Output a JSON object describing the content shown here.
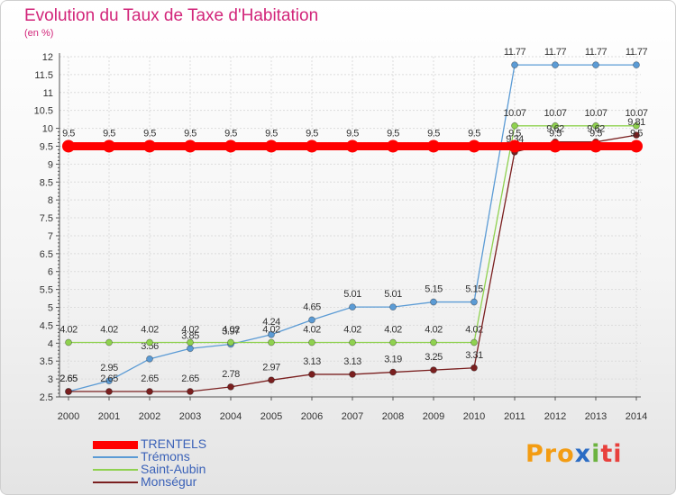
{
  "title": "Evolution du Taux de Taxe d'Habitation",
  "subtitle": "(en %)",
  "logo": [
    "Pro",
    "x",
    "i",
    "ti"
  ],
  "chart_data": {
    "type": "line",
    "x": [
      2000,
      2001,
      2002,
      2003,
      2004,
      2005,
      2006,
      2007,
      2008,
      2009,
      2010,
      2011,
      2012,
      2013,
      2014
    ],
    "ylim": [
      2.5,
      12
    ],
    "yticks": [
      "2.5",
      "3",
      "3.5",
      "4",
      "4.5",
      "5",
      "5.5",
      "6",
      "6.5",
      "7",
      "7.5",
      "8",
      "8.5",
      "9",
      "9.5",
      "10",
      "10.5",
      "11",
      "11.5",
      "12"
    ],
    "grid": true,
    "legend_position": "bottom-left",
    "series": [
      {
        "name": "TRENTELS",
        "color": "#ff0000",
        "values": [
          9.5,
          9.5,
          9.5,
          9.5,
          9.5,
          9.5,
          9.5,
          9.5,
          9.5,
          9.5,
          9.5,
          9.5,
          9.5,
          9.5,
          9.5
        ],
        "labels": [
          "9.5",
          "9.5",
          "9.5",
          "9.5",
          "9.5",
          "9.5",
          "9.5",
          "9.5",
          "9.5",
          "9.5",
          "9.5",
          "9.5",
          "9.5",
          "9.5",
          "9.5"
        ]
      },
      {
        "name": "Trémons",
        "color": "#5b9bd5",
        "values": [
          2.65,
          2.95,
          3.56,
          3.85,
          3.97,
          4.24,
          4.65,
          5.01,
          5.01,
          5.15,
          5.15,
          11.77,
          11.77,
          11.77,
          11.77
        ],
        "labels": [
          "2.65",
          "2.95",
          "3.56",
          "3.85",
          "3.97",
          "4.24",
          "4.65",
          "5.01",
          "5.01",
          "5.15",
          "5.15",
          "11.77",
          "11.77",
          "11.77",
          "11.77"
        ]
      },
      {
        "name": "Saint-Aubin",
        "color": "#8fd14f",
        "values": [
          4.02,
          4.02,
          4.02,
          4.02,
          4.02,
          4.02,
          4.02,
          4.02,
          4.02,
          4.02,
          4.02,
          10.07,
          10.07,
          10.07,
          10.07
        ],
        "labels": [
          "4.02",
          "4.02",
          "4.02",
          "4.02",
          "4.02",
          "4.02",
          "4.02",
          "4.02",
          "4.02",
          "4.02",
          "4.02",
          "10.07",
          "10.07",
          "10.07",
          "10.07"
        ]
      },
      {
        "name": "Monségur",
        "color": "#7a1f1f",
        "values": [
          2.65,
          2.65,
          2.65,
          2.65,
          2.78,
          2.97,
          3.13,
          3.13,
          3.19,
          3.25,
          3.31,
          9.34,
          9.62,
          9.62,
          9.81
        ],
        "labels": [
          "2.65",
          "2.65",
          "2.65",
          "2.65",
          "2.78",
          "2.97",
          "3.13",
          "3.13",
          "3.19",
          "3.25",
          "3.31",
          "9.34",
          "9.62",
          "9.62",
          "9.81"
        ]
      }
    ]
  }
}
